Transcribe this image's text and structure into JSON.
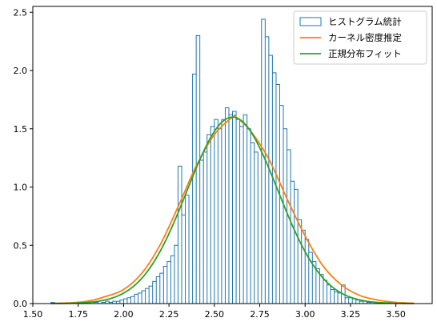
{
  "chart_data": {
    "type": "histogram",
    "xlim": [
      1.5,
      3.7
    ],
    "ylim": [
      0,
      2.55
    ],
    "x_ticks": [
      "1.50",
      "1.75",
      "2.00",
      "2.25",
      "2.50",
      "2.75",
      "3.00",
      "3.25",
      "3.50"
    ],
    "y_ticks": [
      "0.0",
      "0.5",
      "1.0",
      "1.5",
      "2.0",
      "2.5"
    ],
    "grid": false,
    "legend_position": "top-right",
    "colors": {
      "hist": "#1f77b4",
      "kde": "#ff7f0e",
      "fit": "#2ca02c"
    },
    "series": [
      {
        "name": "ヒストグラム統計",
        "kind": "histogram",
        "bin_width": 0.02,
        "bin_start": 1.6,
        "heights": [
          0.01,
          0,
          0,
          0,
          0,
          0,
          0,
          0,
          0,
          0,
          0,
          0.01,
          0.01,
          0,
          0.01,
          0.02,
          0.01,
          0.02,
          0.02,
          0.03,
          0.04,
          0.05,
          0.06,
          0.08,
          0.09,
          0.11,
          0.13,
          0.15,
          0.19,
          0.23,
          0.26,
          0.32,
          0.36,
          0.41,
          0.5,
          1.18,
          0.76,
          0.93,
          0,
          1.97,
          2.3,
          1.23,
          1.3,
          1.45,
          1.52,
          1.58,
          1.5,
          1.58,
          1.68,
          1.62,
          1.65,
          1.58,
          1.52,
          1.62,
          1.5,
          1.38,
          1.3,
          0,
          2.44,
          2.29,
          2.13,
          1.98,
          1.88,
          1.7,
          1.5,
          1.32,
          1.05,
          0.98,
          0.72,
          0.63,
          0.55,
          0.44,
          0.36,
          0.3,
          0.25,
          0.2,
          0.16,
          0.12,
          0.1,
          0.09,
          0.16,
          0.05,
          0.05,
          0.04,
          0.03,
          0.02,
          0.02,
          0.01,
          0.01,
          0.01
        ]
      },
      {
        "name": "カーネル密度推定",
        "kind": "line",
        "x": [
          1.6,
          1.7,
          1.8,
          1.9,
          2.0,
          2.1,
          2.2,
          2.3,
          2.4,
          2.5,
          2.6,
          2.62,
          2.7,
          2.8,
          2.9,
          3.0,
          3.1,
          3.2,
          3.3,
          3.4,
          3.5,
          3.6
        ],
        "y": [
          0.002,
          0.006,
          0.02,
          0.06,
          0.12,
          0.26,
          0.5,
          0.83,
          1.18,
          1.45,
          1.6,
          1.6,
          1.48,
          1.24,
          0.9,
          0.58,
          0.32,
          0.16,
          0.07,
          0.03,
          0.01,
          0.003
        ]
      },
      {
        "name": "正規分布フィット",
        "kind": "line",
        "mean": 2.6,
        "std": 0.25,
        "peak": 1.6
      }
    ]
  }
}
